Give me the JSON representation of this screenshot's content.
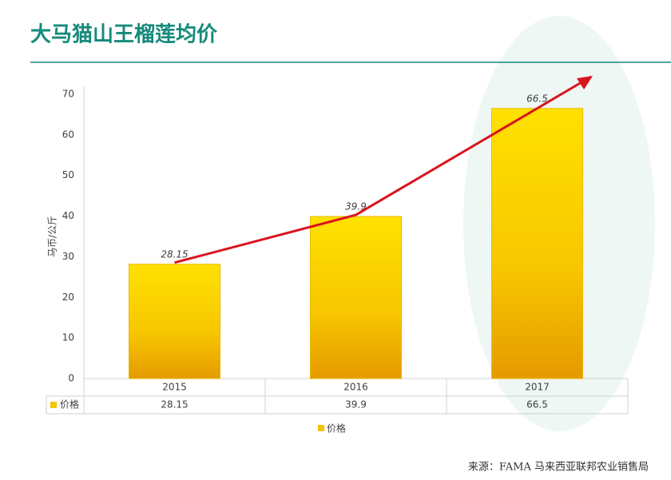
{
  "chart_data": {
    "type": "bar",
    "title": "大马猫山王榴莲均价",
    "y_label": "马币/公斤",
    "categories": [
      "2015",
      "2016",
      "2017"
    ],
    "series": [
      {
        "name": "价格",
        "color": "#f5c400",
        "values": [
          28.15,
          39.9,
          66.5
        ]
      }
    ],
    "ylim": [
      0,
      70
    ],
    "yticks": [
      0,
      10,
      20,
      30,
      40,
      50,
      60,
      70
    ],
    "grid": false,
    "legend": "bottom",
    "data_table": true,
    "trend_arrow_color": "#d9141e",
    "source": "来源：FAMA 马来西亚联邦农业销售局"
  }
}
